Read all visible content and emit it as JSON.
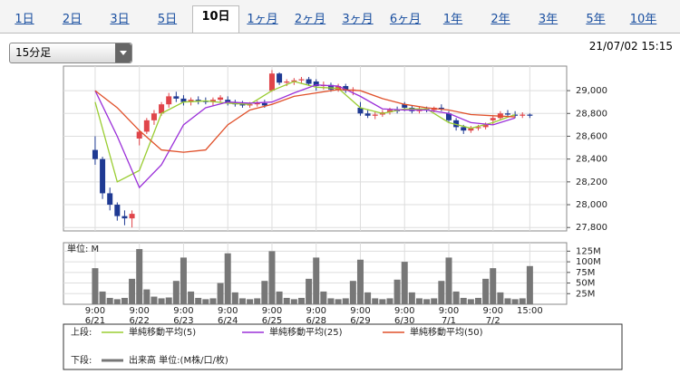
{
  "ui": {
    "tabs": [
      "1日",
      "2日",
      "3日",
      "5日",
      "10日",
      "1ヶ月",
      "2ヶ月",
      "3ヶ月",
      "6ヶ月",
      "1年",
      "2年",
      "3年",
      "5年",
      "10年"
    ],
    "selected_tab": 4,
    "dropdown": "15分足",
    "timestamp": "21/07/02 15:15"
  },
  "chart_data": {
    "type": "candlestick",
    "up_color": "#e0454a",
    "down_color": "#1f3a93",
    "xlim": [
      -4.3,
      64
    ],
    "xticks": [
      {
        "value": 0,
        "label": "9:00"
      },
      {
        "value": 6,
        "label": "9:00"
      },
      {
        "value": 12,
        "label": "9:00"
      },
      {
        "value": 18,
        "label": "9:00"
      },
      {
        "value": 24,
        "label": "9:00"
      },
      {
        "value": 30,
        "label": "9:00"
      },
      {
        "value": 36,
        "label": "9:00"
      },
      {
        "value": 42,
        "label": "9:00"
      },
      {
        "value": 48,
        "label": "9:00"
      },
      {
        "value": 54,
        "label": "9:00"
      },
      {
        "value": 59,
        "label": "15:00"
      }
    ],
    "xtick_dates": [
      "6/21",
      "6/22",
      "6/23",
      "6/24",
      "6/25",
      "6/28",
      "6/29",
      "6/30",
      "7/1",
      "7/2"
    ],
    "ylim": [
      27770,
      29215
    ],
    "yticks": [
      {
        "value": 27800,
        "label": "27,800"
      },
      {
        "value": 28000,
        "label": "28,000"
      },
      {
        "value": 28200,
        "label": "28,200"
      },
      {
        "value": 28400,
        "label": "28,400"
      },
      {
        "value": 28600,
        "label": "28,600"
      },
      {
        "value": 28800,
        "label": "28,800"
      },
      {
        "value": 29000,
        "label": "29,000"
      }
    ],
    "grid": true,
    "ohlc": [
      [
        28480,
        28600,
        28350,
        28400
      ],
      [
        28400,
        28420,
        28050,
        28100
      ],
      [
        28100,
        28150,
        27950,
        28000
      ],
      [
        28000,
        28020,
        27860,
        27900
      ],
      [
        27900,
        27950,
        27820,
        27880
      ],
      [
        27880,
        27950,
        27800,
        27920
      ],
      [
        28580,
        28650,
        28520,
        28640
      ],
      [
        28640,
        28760,
        28620,
        28740
      ],
      [
        28740,
        28830,
        28700,
        28800
      ],
      [
        28800,
        28900,
        28780,
        28880
      ],
      [
        28880,
        28980,
        28850,
        28950
      ],
      [
        28950,
        28990,
        28900,
        28930
      ],
      [
        28930,
        28960,
        28870,
        28900
      ],
      [
        28900,
        28940,
        28870,
        28920
      ],
      [
        28920,
        28950,
        28880,
        28910
      ],
      [
        28910,
        28940,
        28880,
        28900
      ],
      [
        28900,
        28940,
        28870,
        28920
      ],
      [
        28920,
        28960,
        28900,
        28940
      ],
      [
        28920,
        28950,
        28870,
        28900
      ],
      [
        28900,
        28920,
        28860,
        28880
      ],
      [
        28880,
        28910,
        28850,
        28870
      ],
      [
        28870,
        28900,
        28850,
        28880
      ],
      [
        28880,
        28910,
        28860,
        28890
      ],
      [
        28890,
        28920,
        28850,
        28870
      ],
      [
        29000,
        29180,
        28990,
        29150
      ],
      [
        29150,
        29160,
        29050,
        29070
      ],
      [
        29070,
        29100,
        29040,
        29080
      ],
      [
        29080,
        29110,
        29050,
        29090
      ],
      [
        29090,
        29120,
        29060,
        29100
      ],
      [
        29100,
        29120,
        29040,
        29060
      ],
      [
        29080,
        29100,
        29000,
        29040
      ],
      [
        29040,
        29080,
        29010,
        29050
      ],
      [
        29050,
        29070,
        28990,
        29010
      ],
      [
        29010,
        29060,
        28990,
        29040
      ],
      [
        29040,
        29060,
        28980,
        29000
      ],
      [
        29000,
        29030,
        28960,
        29010
      ],
      [
        28850,
        28900,
        28780,
        28800
      ],
      [
        28800,
        28830,
        28760,
        28780
      ],
      [
        28780,
        28820,
        28750,
        28790
      ],
      [
        28790,
        28830,
        28770,
        28810
      ],
      [
        28810,
        28850,
        28790,
        28830
      ],
      [
        28830,
        28860,
        28800,
        28820
      ],
      [
        28880,
        28900,
        28820,
        28850
      ],
      [
        28850,
        28870,
        28800,
        28820
      ],
      [
        28820,
        28860,
        28800,
        28840
      ],
      [
        28840,
        28860,
        28810,
        28830
      ],
      [
        28830,
        28860,
        28810,
        28850
      ],
      [
        28850,
        28880,
        28820,
        28840
      ],
      [
        28800,
        28820,
        28720,
        28740
      ],
      [
        28740,
        28760,
        28650,
        28680
      ],
      [
        28680,
        28700,
        28620,
        28650
      ],
      [
        28650,
        28690,
        28630,
        28670
      ],
      [
        28670,
        28700,
        28650,
        28680
      ],
      [
        28680,
        28720,
        28660,
        28700
      ],
      [
        28740,
        28780,
        28700,
        28760
      ],
      [
        28760,
        28820,
        28740,
        28800
      ],
      [
        28800,
        28830,
        28770,
        28790
      ],
      [
        28790,
        28820,
        28760,
        28780
      ],
      [
        28780,
        28810,
        28760,
        28790
      ],
      [
        28790,
        28800,
        28760,
        28780
      ]
    ],
    "ma_x": [
      0,
      3,
      6,
      9,
      12,
      15,
      18,
      21,
      24,
      27,
      30,
      33,
      36,
      39,
      42,
      45,
      48,
      51,
      54,
      57
    ],
    "series": [
      {
        "name": "単純移動平均(5)",
        "color": "#9acd32",
        "values": [
          28900,
          28200,
          28300,
          28800,
          28900,
          28910,
          28890,
          28880,
          29000,
          29080,
          29030,
          29020,
          28850,
          28800,
          28840,
          28840,
          28720,
          28670,
          28720,
          28790
        ]
      },
      {
        "name": "単純移動平均(25)",
        "color": "#9b30d9",
        "values": [
          29000,
          28600,
          28150,
          28350,
          28700,
          28850,
          28900,
          28890,
          28900,
          28980,
          29050,
          29040,
          28950,
          28840,
          28830,
          28830,
          28800,
          28720,
          28700,
          28760
        ]
      },
      {
        "name": "単純移動平均(50)",
        "color": "#e0502a",
        "values": [
          29000,
          28850,
          28650,
          28480,
          28460,
          28480,
          28700,
          28830,
          28880,
          28950,
          28980,
          29010,
          29000,
          28930,
          28880,
          28850,
          28830,
          28790,
          28780,
          28770
        ]
      }
    ],
    "upper_label": "上段:",
    "lower_label": "下段:",
    "volume": {
      "name": "出来高 単位:(M株/口/枚)",
      "unit_label": "単位: M",
      "color": "#777777",
      "ylim": [
        0,
        145
      ],
      "yticks": [
        {
          "value": 25,
          "label": "25M"
        },
        {
          "value": 50,
          "label": "50M"
        },
        {
          "value": 75,
          "label": "75M"
        },
        {
          "value": 100,
          "label": "100M"
        },
        {
          "value": 125,
          "label": "125M"
        }
      ],
      "values": [
        85,
        30,
        15,
        12,
        15,
        60,
        130,
        35,
        18,
        14,
        16,
        55,
        110,
        30,
        15,
        12,
        14,
        50,
        120,
        28,
        14,
        12,
        14,
        55,
        125,
        30,
        15,
        12,
        15,
        60,
        110,
        30,
        14,
        12,
        14,
        55,
        105,
        28,
        14,
        12,
        14,
        58,
        100,
        28,
        14,
        12,
        14,
        55,
        110,
        30,
        15,
        12,
        15,
        60,
        85,
        28,
        14,
        12,
        14,
        90
      ]
    }
  }
}
